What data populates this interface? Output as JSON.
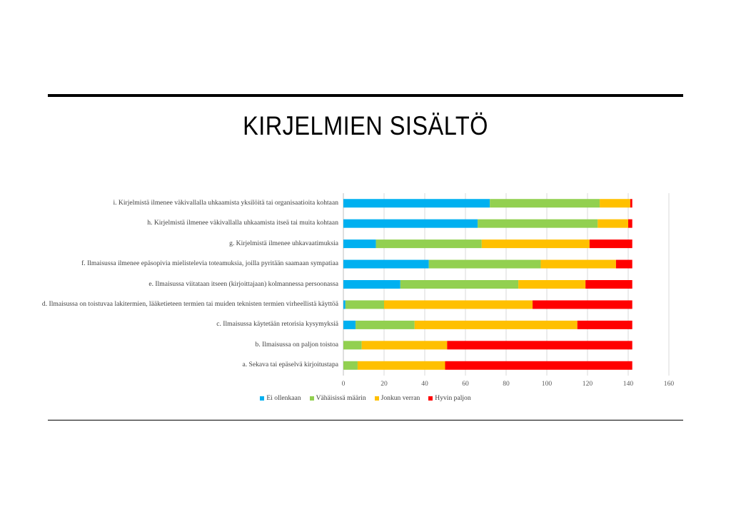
{
  "chart_data": {
    "type": "bar",
    "orientation": "horizontal",
    "stacked": true,
    "title": "KIRJELMIEN SISÄLTÖ",
    "categories": [
      "i. Kirjelmistä ilmenee väkivallalla uhkaamista yksilöitä tai organisaatioita kohtaan",
      "h. Kirjelmistä ilmenee väkivallalla uhkaamista itseä tai muita kohtaan",
      "g. Kirjelmistä ilmenee uhkavaatimuksia",
      "f. Ilmaisussa ilmenee epäsopivia mielistelevia toteamuksia, joilla pyritään saamaan sympatiaa",
      "e.  Ilmaisussa viitataan itseen (kirjoittajaan) kolmannessa persoonassa",
      "d. Ilmaisussa on toistuvaa lakitermien, lääketieteen termien tai muiden teknisten termien virheellistä käyttöä",
      "c. Ilmaisussa käytetään retorisia kysymyksiä",
      "b. Ilmaisussa on paljon toistoa",
      "a. Sekava tai epäselvä kirjoitustapa"
    ],
    "series": [
      {
        "name": "Ei ollenkaan",
        "color": "#00B0F0",
        "values": [
          72,
          66,
          16,
          42,
          28,
          1,
          6,
          0,
          0
        ]
      },
      {
        "name": "Vähäisissä määrin",
        "color": "#92D050",
        "values": [
          54,
          59,
          52,
          55,
          58,
          19,
          29,
          9,
          7
        ]
      },
      {
        "name": "Jonkun verran",
        "color": "#FFC000",
        "values": [
          15,
          15,
          53,
          37,
          33,
          73,
          80,
          42,
          43
        ]
      },
      {
        "name": "Hyvin paljon",
        "color": "#FF0000",
        "values": [
          1,
          2,
          21,
          8,
          23,
          49,
          27,
          91,
          92
        ]
      }
    ],
    "xlim": [
      0,
      160
    ],
    "xticks": [
      "0",
      "20",
      "40",
      "60",
      "80",
      "100",
      "120",
      "140",
      "160"
    ],
    "grid": true,
    "legend_position": "bottom"
  }
}
